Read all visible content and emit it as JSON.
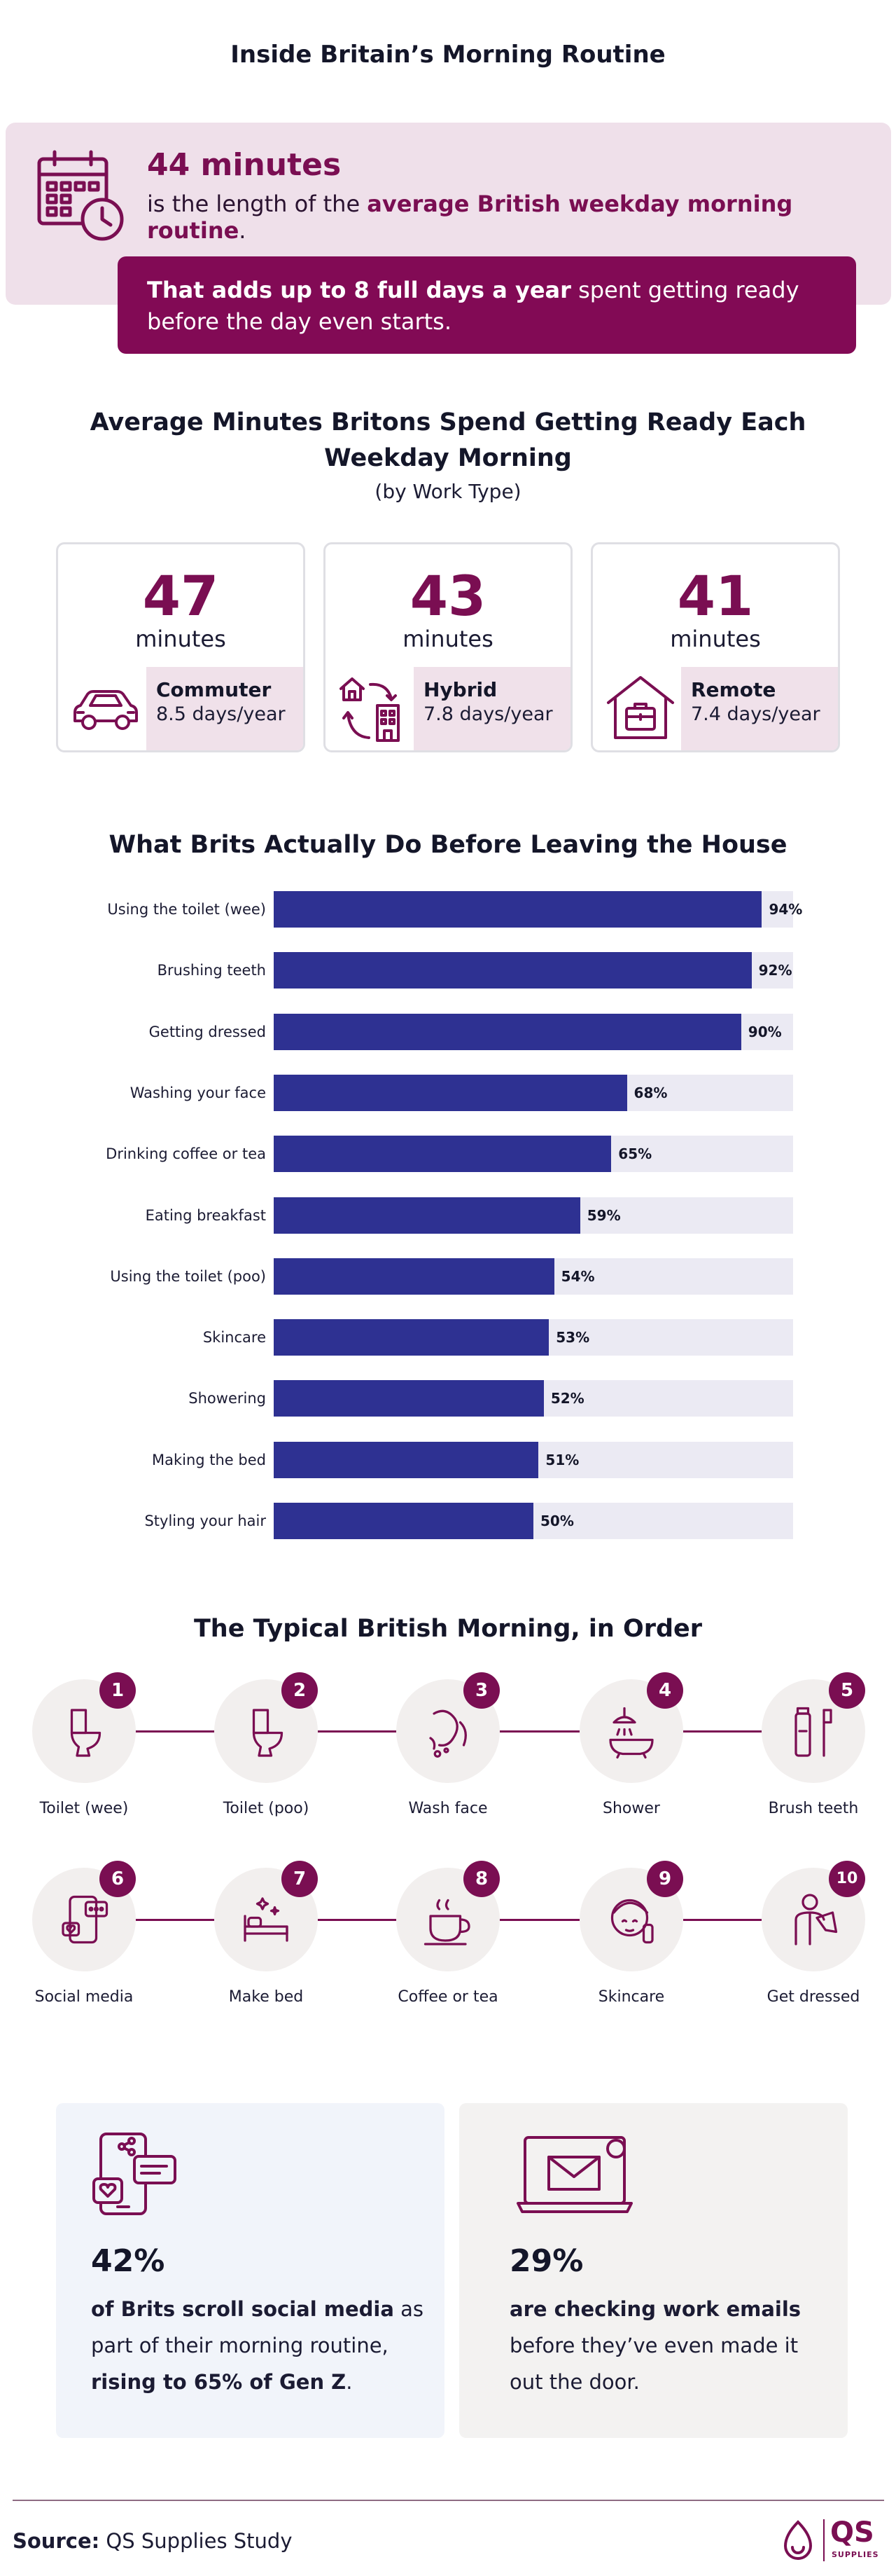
{
  "page_title": "Inside Britain’s Morning Routine",
  "hero": {
    "headline": "44 minutes",
    "desc_prefix": "is the length of the ",
    "desc_bold": "average British weekday morning routine",
    "desc_suffix": ".",
    "callout_bold": "That adds up to 8 full days a year",
    "callout_rest": " spent getting ready before the day even starts."
  },
  "work_type": {
    "title_line1": "Average Minutes Britons Spend Getting Ready Each",
    "title_line2": "Weekday Morning",
    "subtitle": "(by Work Type)",
    "unit": "minutes",
    "cards": [
      {
        "minutes": "47",
        "name": "Commuter",
        "days": "8.5 days/year",
        "icon": "car-icon"
      },
      {
        "minutes": "43",
        "name": "Hybrid",
        "days": "7.8 days/year",
        "icon": "house-office-icon"
      },
      {
        "minutes": "41",
        "name": "Remote",
        "days": "7.4 days/year",
        "icon": "house-briefcase-icon"
      }
    ]
  },
  "chart_data": {
    "type": "bar",
    "orientation": "horizontal",
    "title": "What Brits Actually Do Before Leaving the House",
    "categories": [
      "Using the toilet (wee)",
      "Brushing teeth",
      "Getting dressed",
      "Washing your face",
      "Drinking coffee or tea",
      "Eating breakfast",
      "Using the toilet (poo)",
      "Skincare",
      "Showering",
      "Making the bed",
      "Styling your hair"
    ],
    "values": [
      94,
      92,
      90,
      68,
      65,
      59,
      54,
      53,
      52,
      51,
      50
    ],
    "value_labels": [
      "94%",
      "92%",
      "90%",
      "68%",
      "65%",
      "59%",
      "54%",
      "53%",
      "52%",
      "51%",
      "50%"
    ],
    "xlim": [
      0,
      100
    ],
    "bar_color": "#2e3192",
    "track_color": "#ebeaf3"
  },
  "sequence": {
    "title": "The Typical British Morning, in Order",
    "steps": [
      {
        "n": "1",
        "label": "Toilet (wee)",
        "icon": "toilet-icon"
      },
      {
        "n": "2",
        "label": "Toilet (poo)",
        "icon": "toilet-icon"
      },
      {
        "n": "3",
        "label": "Wash face",
        "icon": "wash-face-icon"
      },
      {
        "n": "4",
        "label": "Shower",
        "icon": "shower-icon"
      },
      {
        "n": "5",
        "label": "Brush teeth",
        "icon": "toothbrush-icon"
      },
      {
        "n": "6",
        "label": "Social media",
        "icon": "phone-social-icon"
      },
      {
        "n": "7",
        "label": "Make bed",
        "icon": "bed-icon"
      },
      {
        "n": "8",
        "label": "Coffee or tea",
        "icon": "coffee-cup-icon"
      },
      {
        "n": "9",
        "label": "Skincare",
        "icon": "skincare-icon"
      },
      {
        "n": "10",
        "label": "Get dressed",
        "icon": "shirt-icon"
      }
    ]
  },
  "stats": [
    {
      "value": "42%",
      "bold1": "of Brits scroll social media",
      "text1": " as part of their morning routine, ",
      "bold2": "rising to 65% of Gen Z",
      "text2": "."
    },
    {
      "value": "29%",
      "bold1": "are checking work emails",
      "text1": " before they’ve even made it out the door."
    }
  ],
  "footer": {
    "source_label": "Source:",
    "source_text": " QS Supplies Study",
    "logo_text": "QS",
    "logo_sub": "SUPPLIES"
  },
  "colors": {
    "plum": "#7a0e52",
    "navy": "#2e3192",
    "pink_bg": "#efe0ea",
    "blue_bg": "#f1f4fa",
    "grey_bg": "#f3f2f1"
  }
}
